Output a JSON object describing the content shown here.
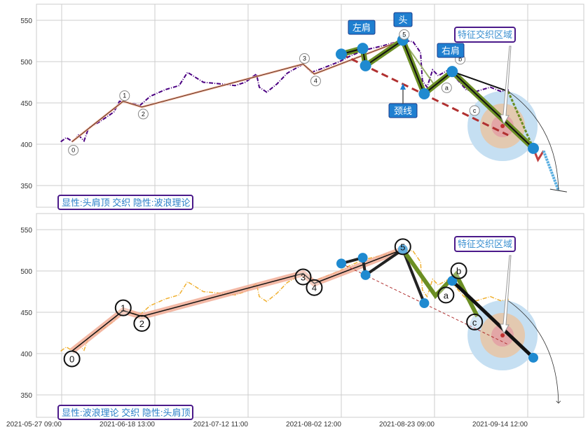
{
  "chart_data": {
    "type": "line",
    "x_tick_labels": [
      "2021-05-27 09:00",
      "2021-06-18 13:00",
      "2021-07-12 11:00",
      "2021-08-02 12:00",
      "2021-08-23 09:00",
      "2021-09-14 12:00"
    ],
    "x_ticks": [
      0,
      100,
      200,
      300,
      400,
      500
    ],
    "xlim": [
      -27,
      560
    ],
    "ylim": [
      324,
      570
    ],
    "y_ticks": [
      350,
      400,
      450,
      500,
      550
    ],
    "price": [
      [
        -1,
        403
      ],
      [
        5,
        408
      ],
      [
        12,
        403
      ],
      [
        18,
        411
      ],
      [
        24,
        404
      ],
      [
        29,
        420
      ],
      [
        39,
        426
      ],
      [
        47,
        432
      ],
      [
        56,
        439
      ],
      [
        62,
        452
      ],
      [
        73,
        450
      ],
      [
        84,
        447
      ],
      [
        95,
        458
      ],
      [
        111,
        466
      ],
      [
        126,
        471
      ],
      [
        135,
        487
      ],
      [
        152,
        475
      ],
      [
        171,
        473
      ],
      [
        186,
        471
      ],
      [
        197,
        475
      ],
      [
        209,
        485
      ],
      [
        212,
        469
      ],
      [
        220,
        463
      ],
      [
        231,
        473
      ],
      [
        242,
        486
      ],
      [
        259,
        497
      ],
      [
        268,
        487
      ],
      [
        280,
        492
      ],
      [
        298,
        500
      ],
      [
        310,
        507
      ],
      [
        325,
        514
      ],
      [
        344,
        519
      ],
      [
        366,
        526
      ],
      [
        377,
        524
      ],
      [
        385,
        511
      ],
      [
        387,
        477
      ],
      [
        392,
        469
      ],
      [
        398,
        490
      ],
      [
        404,
        483
      ],
      [
        415,
        490
      ],
      [
        423,
        480
      ],
      [
        434,
        466
      ],
      [
        445,
        464
      ],
      [
        460,
        469
      ],
      [
        471,
        464
      ],
      [
        481,
        466
      ]
    ],
    "wave": {
      "labels": [
        "0",
        "1",
        "2",
        "3",
        "4",
        "5",
        "a",
        "b",
        "c"
      ],
      "points": [
        [
          11,
          403
        ],
        [
          66,
          452
        ],
        [
          86,
          445
        ],
        [
          259,
          497
        ],
        [
          271,
          485
        ],
        [
          366,
          526
        ],
        [
          401,
          470
        ],
        [
          423,
          496
        ],
        [
          446,
          445
        ]
      ]
    },
    "head_shoulders": {
      "points": [
        [
          300,
          509
        ],
        [
          323,
          516
        ],
        [
          326,
          495
        ],
        [
          366,
          526
        ],
        [
          389,
          461
        ],
        [
          419,
          488
        ],
        [
          506,
          395
        ]
      ],
      "neckline": [
        [
          300,
          509
        ],
        [
          479,
          411
        ]
      ],
      "projection": [
        [
          506,
          395
        ],
        [
          511,
          381
        ],
        [
          517,
          392
        ],
        [
          533,
          344
        ]
      ],
      "trend": [
        [
          419,
          488
        ],
        [
          479,
          464
        ]
      ]
    },
    "zone_center": [
      473,
      422
    ],
    "panels": [
      {
        "legend": "显性:头肩顶 交织 隐性:波浪理论",
        "zone_label": "特征交织区域",
        "callouts": {
          "left_shoulder": "左肩",
          "head": "头",
          "right_shoulder": "右肩",
          "neckline": "颈线"
        }
      },
      {
        "legend": "显性:波浪理论 交织 隐性:头肩顶",
        "zone_label": "特征交织区域"
      }
    ]
  },
  "colors": {
    "price_top": "#4b0082",
    "price_bottom": "#f0b030",
    "hs": "#6b8e23",
    "dot": "#1f8ad0",
    "neck": "#b03030",
    "callout": "#1f7fd0",
    "box": "#4b1a8a"
  }
}
